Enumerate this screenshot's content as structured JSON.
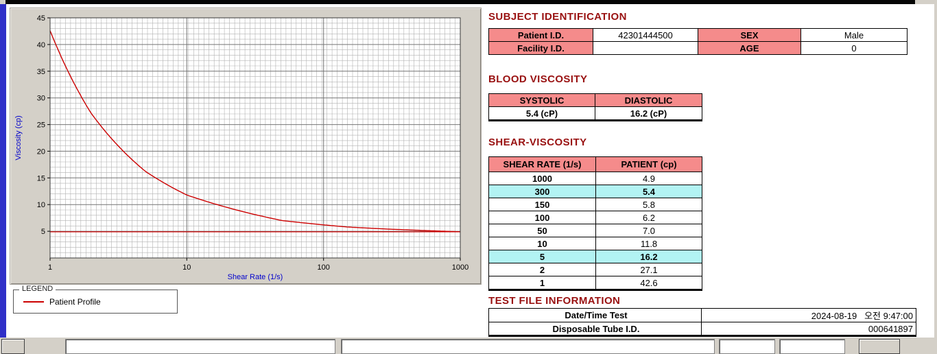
{
  "colors": {
    "section_title": "#991111",
    "table_header_bg": "#f58b8b",
    "highlight_row_bg": "#b2f3f3",
    "curve": "#cc0000",
    "axis_label": "#0000cc",
    "edge_blue": "#3030c8"
  },
  "chart_data": {
    "type": "line",
    "title": "",
    "xlabel": "Shear Rate (1/s)",
    "ylabel": "Viscosity (cp)",
    "x_scale": "log",
    "xlim": [
      1,
      1000
    ],
    "ylim": [
      0,
      45
    ],
    "x_ticks": [
      1,
      10,
      100,
      1000
    ],
    "y_tick_step": 5,
    "grid": "fine mesh on",
    "legend_position": "bottom-left groupbox",
    "series": [
      {
        "name": "Patient Profile",
        "color": "#cc0000",
        "x": [
          1,
          2,
          5,
          10,
          50,
          100,
          150,
          300,
          1000
        ],
        "y": [
          42.6,
          27.1,
          16.2,
          11.8,
          7.0,
          6.2,
          5.8,
          5.4,
          4.9
        ]
      }
    ],
    "reference_line": {
      "y": 4.9,
      "color": "#cc0000"
    }
  },
  "legend": {
    "title": "LEGEND",
    "entry": "Patient Profile"
  },
  "subject": {
    "title": "SUBJECT IDENTIFICATION",
    "patient_id_label": "Patient I.D.",
    "patient_id": "42301444500",
    "sex_label": "SEX",
    "sex": "Male",
    "facility_id_label": "Facility I.D.",
    "facility_id": "",
    "age_label": "AGE",
    "age": "0"
  },
  "blood": {
    "title": "BLOOD VISCOSITY",
    "systolic_label": "SYSTOLIC",
    "diastolic_label": "DIASTOLIC",
    "systolic_value": "5.4 (cP)",
    "diastolic_value": "16.2 (cP)"
  },
  "shear": {
    "title": "SHEAR-VISCOSITY",
    "col_rate": "SHEAR RATE (1/s)",
    "col_patient": "PATIENT (cp)",
    "rows": [
      {
        "rate": "1000",
        "value": "4.9",
        "highlight": false
      },
      {
        "rate": "300",
        "value": "5.4",
        "highlight": true
      },
      {
        "rate": "150",
        "value": "5.8",
        "highlight": false
      },
      {
        "rate": "100",
        "value": "6.2",
        "highlight": false
      },
      {
        "rate": "50",
        "value": "7.0",
        "highlight": false
      },
      {
        "rate": "10",
        "value": "11.8",
        "highlight": false
      },
      {
        "rate": "5",
        "value": "16.2",
        "highlight": true
      },
      {
        "rate": "2",
        "value": "27.1",
        "highlight": false
      },
      {
        "rate": "1",
        "value": "42.6",
        "highlight": false
      }
    ]
  },
  "test_file": {
    "title": "TEST FILE INFORMATION",
    "rows": [
      {
        "label": "Date/Time Test",
        "value": "2024-08-19   오전 9:47:00"
      },
      {
        "label": "Disposable Tube I.D.",
        "value": "000641897"
      }
    ]
  }
}
